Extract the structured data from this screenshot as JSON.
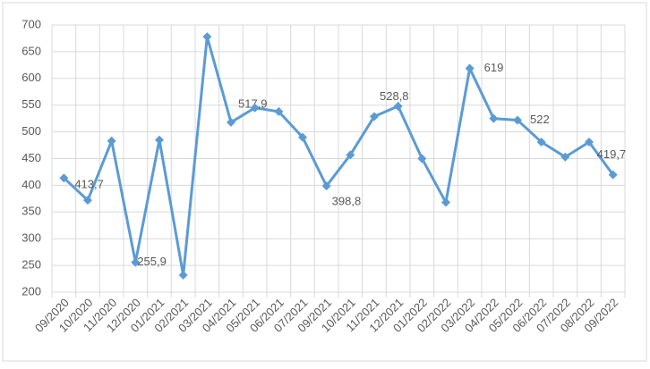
{
  "chart_data": {
    "type": "line",
    "categories": [
      "09/2020",
      "10/2020",
      "11/2020",
      "12/2020",
      "01/2021",
      "02/2021",
      "03/2021",
      "04/2021",
      "05/2021",
      "06/2021",
      "07/2021",
      "09/2021",
      "10/2021",
      "11/2021",
      "12/2021",
      "01/2022",
      "02/2022",
      "03/2022",
      "04/2022",
      "05/2022",
      "06/2022",
      "07/2022",
      "08/2022",
      "09/2022"
    ],
    "series": [
      {
        "color": "#5b9bd5",
        "values": [
          413.7,
          372,
          483,
          255.9,
          485,
          232,
          678,
          517.9,
          545,
          538,
          490,
          398.8,
          457,
          528.8,
          548,
          450,
          368,
          619,
          525,
          522,
          481,
          453,
          481,
          419.7
        ],
        "value_labels": [
          "413,7",
          null,
          null,
          "255,9",
          null,
          null,
          null,
          "517,9",
          null,
          null,
          null,
          "398,8",
          null,
          "528,8",
          null,
          null,
          null,
          "619",
          null,
          "522",
          null,
          null,
          null,
          "419,7"
        ]
      }
    ],
    "ylim": [
      200,
      700
    ],
    "yticks": [
      200,
      250,
      300,
      350,
      400,
      450,
      500,
      550,
      600,
      650,
      700
    ],
    "grid": true
  }
}
